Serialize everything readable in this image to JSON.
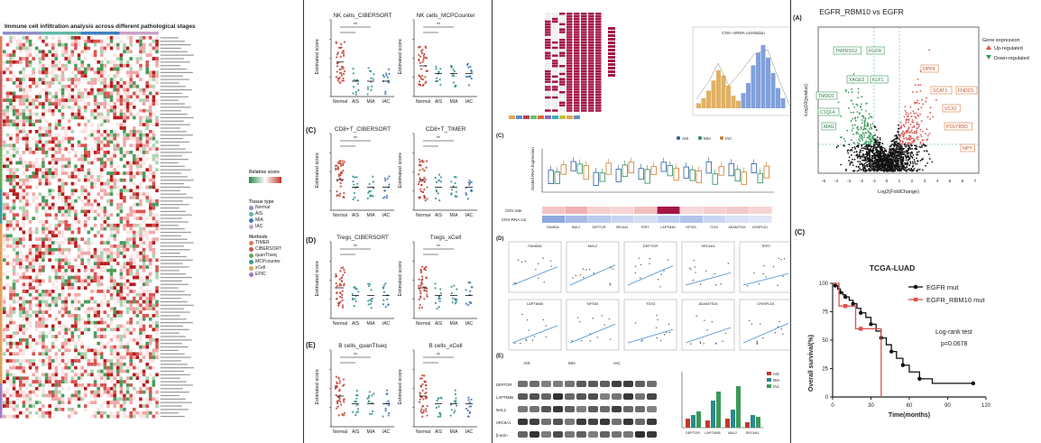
{
  "panel_a": {
    "title": "Immune cell infiltration analysis across different pathological stages",
    "legend_relative_score": "Relative score",
    "legend_tissue_type": "Tissue type",
    "tissue_types": [
      {
        "name": "Normal",
        "color": "#8b8fc7"
      },
      {
        "name": "AIS",
        "color": "#5fb8a6"
      },
      {
        "name": "MIA",
        "color": "#3a7fc0"
      },
      {
        "name": "IAC",
        "color": "#c9a0c5"
      }
    ],
    "legend_methods": "Methods",
    "methods": [
      {
        "name": "TIMER",
        "color": "#e07b5c"
      },
      {
        "name": "CIBERSORT",
        "color": "#c55a5a"
      },
      {
        "name": "quanTIseq",
        "color": "#6aaa5a"
      },
      {
        "name": "MCPcounter",
        "color": "#3a9a9a"
      },
      {
        "name": "xCell",
        "color": "#e0a05a"
      },
      {
        "name": "EPIC",
        "color": "#9a7ac0"
      }
    ]
  },
  "panel_b": {
    "letter_c": "(C)",
    "letter_d": "(D)",
    "letter_e": "(E)",
    "ylabel": "Estimated score",
    "xcats": [
      "Normal",
      "AIS",
      "MIA",
      "IAC"
    ],
    "plots": [
      {
        "title": "NK cells_CIBERSORT"
      },
      {
        "title": "NK cells_MCPCounter"
      },
      {
        "title": "CD8+T_CIBERSORT"
      },
      {
        "title": "CD8+T_TIMER"
      },
      {
        "title": "Tregs_CIBERSORT"
      },
      {
        "title": "Tregs_xCell"
      },
      {
        "title": "B cells_quanTIseq"
      },
      {
        "title": "B cells_xCell"
      }
    ]
  },
  "panel_c": {
    "letter_c": "(C)",
    "letter_d": "(D)",
    "letter_e": "(E)",
    "cnv_title": "CNV--mRNA correlation",
    "boxplot_ylabel": "Scaled RNA Expression",
    "genes": [
      "FAM83A",
      "MAL2",
      "DEPTOR",
      "SRC6A1",
      "TERT",
      "LAPTM4B",
      "NFS53",
      "TOX3",
      "ADAMTS16",
      "CRISPLD1"
    ],
    "cnv_rate_label": "CNV rate",
    "cnv_rna_label": "CNV-RNA cor",
    "wb_labels": [
      "DEPTOR",
      "LAPTM4B",
      "MAL2",
      "SRC6A1",
      "β-actin"
    ],
    "wb_groups": [
      "AIS",
      "MIA",
      "IAC"
    ],
    "bar_groups": [
      "DEPTOR",
      "LAPTM4B",
      "MAL2",
      "SRC6A1"
    ],
    "legend_labels": [
      "AIS",
      "MIA",
      "IAC"
    ]
  },
  "panel_d": {
    "letter_a": "(A)",
    "volcano_title": "EGFR_RBM10 vs EGFR",
    "legend_title": "Gene expression",
    "legend_up": "Up-regulated",
    "legend_down": "Down-regulated",
    "ylabel": "-Log10(pvalue)",
    "xlabel": "Log2(FoldChange)",
    "x_ticks": [
      "-5",
      "-4",
      "-3",
      "-2",
      "-1",
      "0",
      "1",
      "2",
      "3",
      "4",
      "5",
      "6",
      "7"
    ],
    "labels_down": [
      "TMPRSS2",
      "FGFR",
      "XAGE3",
      "KLF1",
      "TMDD1",
      "C1QL4",
      "MAG"
    ],
    "labels_up": [
      "DPP4",
      "SCAT1",
      "FNDC5",
      "VCX2",
      "POLYR5D",
      "NPY"
    ]
  },
  "panel_km": {
    "letter": "(C)",
    "title": "TCGA-LUAD",
    "ylabel": "Overall survival(%)",
    "xlabel": "Time(months)",
    "legend_a": "EGFR mut",
    "legend_b": "EGFR_RBM10 mut",
    "test_label": "Log-rank test",
    "p_value": "p=0.0678",
    "y_ticks": [
      "100",
      "75",
      "50",
      "25",
      "0"
    ],
    "x_ticks": [
      "0",
      "30",
      "60",
      "90",
      "120"
    ]
  }
}
